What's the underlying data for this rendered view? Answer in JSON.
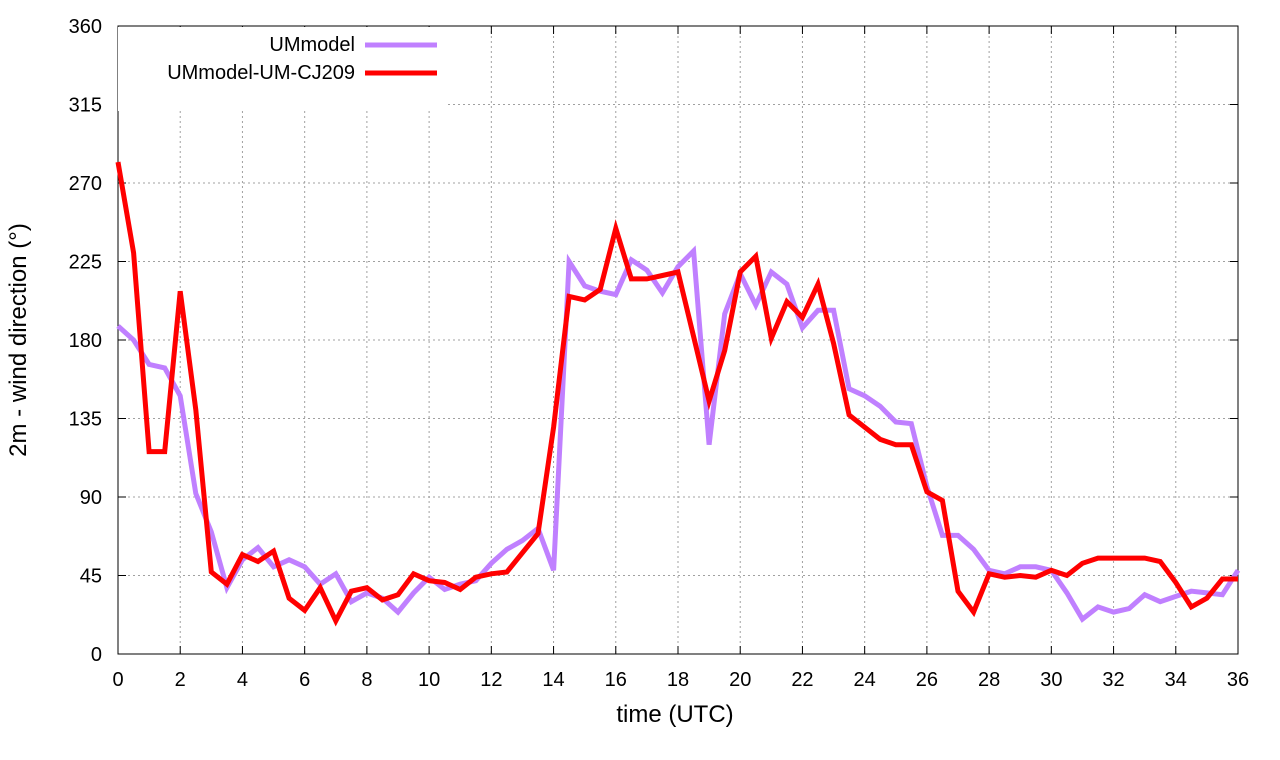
{
  "chart_data": {
    "type": "line",
    "title": "",
    "xlabel": "time (UTC)",
    "ylabel": "2m - wind direction (°)",
    "xlim": [
      0,
      36
    ],
    "ylim": [
      0,
      360
    ],
    "xticks": [
      0,
      2,
      4,
      6,
      8,
      10,
      12,
      14,
      16,
      18,
      20,
      22,
      24,
      26,
      28,
      30,
      32,
      34,
      36
    ],
    "yticks": [
      0,
      45,
      90,
      135,
      180,
      225,
      270,
      315,
      360
    ],
    "grid": true,
    "legend_position": "top-left",
    "series": [
      {
        "name": "UMmodel",
        "color": "#c080ff",
        "x": [
          0,
          0.5,
          1,
          1.5,
          2,
          2.5,
          3,
          3.5,
          4,
          4.5,
          5,
          5.5,
          6,
          6.5,
          7,
          7.5,
          8,
          8.5,
          9,
          9.5,
          10,
          10.5,
          11,
          11.5,
          12,
          12.5,
          13,
          13.5,
          14,
          14.5,
          15,
          15.5,
          16,
          16.5,
          17,
          17.5,
          18,
          18.5,
          19,
          19.5,
          20,
          20.5,
          21,
          21.5,
          22,
          22.5,
          23,
          23.5,
          24,
          24.5,
          25,
          25.5,
          26,
          26.5,
          27,
          27.5,
          28,
          28.5,
          29,
          29.5,
          30,
          30.5,
          31,
          31.5,
          32,
          32.5,
          33,
          33.5,
          34,
          34.5,
          35,
          35.5,
          36
        ],
        "y": [
          188,
          180,
          166,
          164,
          148,
          92,
          70,
          38,
          54,
          61,
          50,
          54,
          50,
          40,
          46,
          30,
          35,
          32,
          24,
          35,
          44,
          37,
          40,
          42,
          52,
          60,
          65,
          72,
          48,
          225,
          211,
          208,
          206,
          226,
          220,
          207,
          222,
          231,
          120,
          195,
          218,
          200,
          219,
          212,
          187,
          197,
          197,
          152,
          148,
          142,
          133,
          132,
          96,
          68,
          68,
          60,
          48,
          46,
          50,
          50,
          48,
          35,
          20,
          27,
          24,
          26,
          34,
          30,
          33,
          36,
          35,
          34,
          48
        ]
      },
      {
        "name": "UMmodel-UM-CJ209",
        "color": "#ff0000",
        "x": [
          0,
          0.5,
          1,
          1.5,
          2,
          2.5,
          3,
          3.5,
          4,
          4.5,
          5,
          5.5,
          6,
          6.5,
          7,
          7.5,
          8,
          8.5,
          9,
          9.5,
          10,
          10.5,
          11,
          11.5,
          12,
          12.5,
          13,
          13.5,
          14,
          14.5,
          15,
          15.5,
          16,
          16.5,
          17,
          17.5,
          18,
          18.5,
          19,
          19.5,
          20,
          20.5,
          21,
          21.5,
          22,
          22.5,
          23,
          23.5,
          24,
          24.5,
          25,
          25.5,
          26,
          26.5,
          27,
          27.5,
          28,
          28.5,
          29,
          29.5,
          30,
          30.5,
          31,
          31.5,
          32,
          32.5,
          33,
          33.5,
          34,
          34.5,
          35,
          35.5,
          36
        ],
        "y": [
          282,
          230,
          116,
          116,
          208,
          140,
          47,
          40,
          57,
          53,
          59,
          32,
          25,
          38,
          19,
          36,
          38,
          31,
          34,
          46,
          42,
          41,
          37,
          44,
          46,
          47,
          58,
          69,
          130,
          205,
          203,
          209,
          244,
          215,
          215,
          217,
          219,
          182,
          145,
          174,
          219,
          228,
          181,
          202,
          193,
          212,
          178,
          137,
          130,
          123,
          120,
          120,
          93,
          88,
          36,
          24,
          46,
          44,
          45,
          44,
          48,
          45,
          52,
          55,
          55,
          55,
          55,
          53,
          41,
          27,
          32,
          43,
          43
        ]
      }
    ]
  }
}
